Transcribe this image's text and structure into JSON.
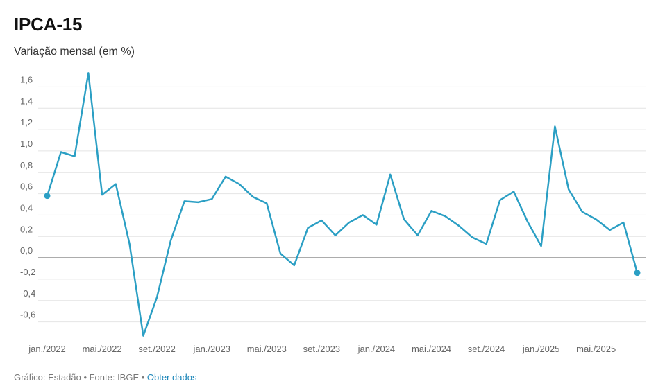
{
  "chart_data": {
    "type": "line",
    "title": "IPCA-15",
    "subtitle": "Variação mensal (em %)",
    "ylim": [
      -0.7,
      1.7
    ],
    "y_ticks": [
      -0.6,
      -0.4,
      -0.2,
      0.0,
      0.2,
      0.4,
      0.6,
      0.8,
      1.0,
      1.2,
      1.4,
      1.6
    ],
    "y_tick_labels": [
      "-0,6",
      "-0,4",
      "-0,2",
      "0,0",
      "0,2",
      "0,4",
      "0,6",
      "0,8",
      "1,0",
      "1,2",
      "1,4",
      "1,6"
    ],
    "x_ticks": [
      {
        "index": 0,
        "label": "jan./2022"
      },
      {
        "index": 4,
        "label": "mai./2022"
      },
      {
        "index": 8,
        "label": "set./2022"
      },
      {
        "index": 12,
        "label": "jan./2023"
      },
      {
        "index": 16,
        "label": "mai./2023"
      },
      {
        "index": 20,
        "label": "set./2023"
      },
      {
        "index": 24,
        "label": "jan./2024"
      },
      {
        "index": 28,
        "label": "mai./2024"
      },
      {
        "index": 32,
        "label": "set./2024"
      },
      {
        "index": 36,
        "label": "jan./2025"
      },
      {
        "index": 40,
        "label": "mai./2025"
      }
    ],
    "x": [
      "2022-01",
      "2022-02",
      "2022-03",
      "2022-04",
      "2022-05",
      "2022-06",
      "2022-07",
      "2022-08",
      "2022-09",
      "2022-10",
      "2022-11",
      "2022-12",
      "2023-01",
      "2023-02",
      "2023-03",
      "2023-04",
      "2023-05",
      "2023-06",
      "2023-07",
      "2023-08",
      "2023-09",
      "2023-10",
      "2023-11",
      "2023-12",
      "2024-01",
      "2024-02",
      "2024-03",
      "2024-04",
      "2024-05",
      "2024-06",
      "2024-07",
      "2024-08",
      "2024-09",
      "2024-10",
      "2024-11",
      "2024-12",
      "2025-01",
      "2025-02",
      "2025-03",
      "2025-04",
      "2025-05",
      "2025-06",
      "2025-07",
      "2025-08"
    ],
    "series": [
      {
        "values": [
          0.58,
          0.99,
          0.95,
          1.73,
          0.59,
          0.69,
          0.13,
          -0.73,
          -0.37,
          0.16,
          0.53,
          0.52,
          0.55,
          0.76,
          0.69,
          0.57,
          0.51,
          0.04,
          -0.07,
          0.28,
          0.35,
          0.21,
          0.33,
          0.4,
          0.31,
          0.78,
          0.36,
          0.21,
          0.44,
          0.39,
          0.3,
          0.19,
          0.13,
          0.54,
          0.62,
          0.34,
          0.11,
          1.23,
          0.64,
          0.43,
          0.36,
          0.26,
          0.33,
          -0.14
        ],
        "color": "#2b9fc4"
      }
    ],
    "grid": true,
    "colors": {
      "line": "#2b9fc4",
      "grid": "#e4e4e4",
      "zero_line": "#222222"
    }
  },
  "footer": {
    "text": "Gráfico: Estadão • Fonte: IBGE •",
    "link": "Obter dados",
    "link_color": "#1c86b9"
  }
}
